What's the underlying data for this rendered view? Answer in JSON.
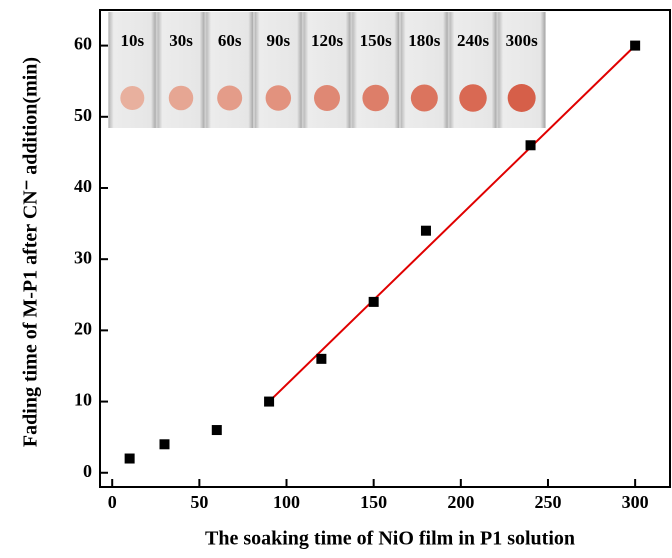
{
  "chart_data": {
    "type": "scatter",
    "x_label": "The soaking time of NiO film in P1 solution",
    "y_label": "Fading time of M-P1 after CN⁻ addition(min)",
    "x": [
      10,
      30,
      60,
      90,
      120,
      150,
      180,
      240,
      300
    ],
    "series": [
      {
        "color": "#000000",
        "values": [
          2,
          4,
          6,
          10,
          16,
          24,
          34,
          46,
          60
        ]
      }
    ],
    "fit": {
      "x": [
        90,
        300
      ],
      "values": [
        10,
        60
      ],
      "color": "#e00000"
    },
    "inset_labels": [
      "10s",
      "30s",
      "60s",
      "90s",
      "120s",
      "150s",
      "180s",
      "240s",
      "300s"
    ],
    "xlim": [
      -7,
      320
    ],
    "xticks": [
      0,
      50,
      100,
      150,
      200,
      250,
      300
    ],
    "ylim": [
      -2,
      65
    ],
    "yticks": [
      0,
      10,
      20,
      30,
      40,
      50,
      60
    ]
  }
}
